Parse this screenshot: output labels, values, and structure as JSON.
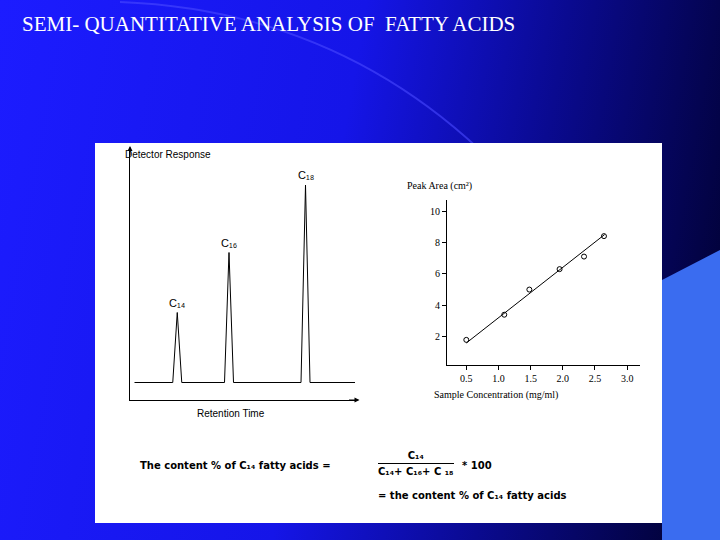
{
  "slide": {
    "title": "SEMI- QUANTITATIVE ANALYSIS OF  FATTY ACIDS"
  },
  "chart_data": [
    {
      "type": "line",
      "xlabel": "Retention Time",
      "ylabel": "Detector Response",
      "x": [
        2,
        19,
        21,
        23,
        42,
        44,
        46,
        76,
        78,
        80,
        100
      ],
      "values": [
        7,
        7,
        35,
        7,
        7,
        59,
        7,
        7,
        86,
        7,
        7
      ],
      "xlim": [
        0,
        100
      ],
      "ylim": [
        0,
        100
      ],
      "xticks": [],
      "yticks": [],
      "tick_labels": false,
      "grid": false,
      "color": "#000000",
      "annotations": [
        {
          "text": "C₁₄",
          "x": 21,
          "y": 35
        },
        {
          "text": "C₁₆",
          "x": 44,
          "y": 59
        },
        {
          "text": "C₁₈",
          "x": 78,
          "y": 86
        }
      ]
    },
    {
      "type": "scatter",
      "xlabel": "Sample Concentration (mg/ml)",
      "ylabel": "Peak Area (cm²)",
      "xlim": [
        0.2,
        3.2
      ],
      "ylim": [
        0.2,
        10.7
      ],
      "xticks": [
        0.5,
        {
          "value": 1,
          "label": "1.0"
        },
        1.5,
        {
          "value": 2,
          "label": "2.0"
        },
        2.5,
        {
          "value": 3,
          "label": "3.0"
        }
      ],
      "yticks": [
        2,
        4,
        6,
        8,
        10
      ],
      "grid": false,
      "color": "#000000",
      "series": [
        {
          "type": "scatter",
          "marker": "open circle",
          "x": [
            0.5,
            1.09,
            1.48,
            1.95,
            2.33,
            2.64
          ],
          "values": [
            1.8,
            3.4,
            5.0,
            6.3,
            7.1,
            8.4
          ]
        },
        {
          "type": "line",
          "line_style": "solid",
          "x": [
            0.5,
            2.65
          ],
          "values": [
            1.6,
            8.5
          ]
        }
      ]
    }
  ],
  "formula": {
    "lhs": "The content % of C₁₄ fatty acids =",
    "numerator": "C₁₄",
    "denominator": "C₁₄+ C₁₆+ C ₁₈",
    "multiplier": "* 100",
    "result": "= the content % of C₁₄ fatty acids"
  }
}
